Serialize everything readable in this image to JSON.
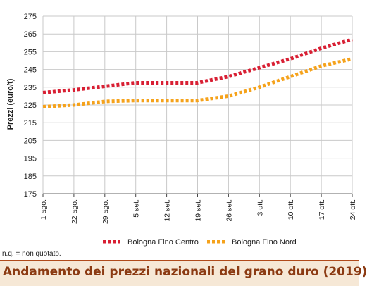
{
  "chart_data": {
    "type": "line",
    "ylabel": "Prezzi (euro/t)",
    "ylim": [
      175,
      275
    ],
    "yticks": [
      175,
      185,
      195,
      205,
      215,
      225,
      235,
      245,
      255,
      265,
      275
    ],
    "categories": [
      "1 ago.",
      "22 ago.",
      "29 ago.",
      "5 set.",
      "12 set.",
      "19 set.",
      "26 set.",
      "3 ott.",
      "10 ott.",
      "17 ott.",
      "24 ott."
    ],
    "series": [
      {
        "name": "Bologna Fino Centro",
        "color": "#d81f33",
        "values": [
          232,
          233.5,
          235.5,
          237.5,
          237.5,
          237.5,
          241,
          246,
          251,
          257,
          262
        ]
      },
      {
        "name": "Bologna Fino Nord",
        "color": "#f5a21b",
        "values": [
          224,
          225,
          227,
          227.5,
          227.5,
          227.5,
          230,
          235,
          241,
          247,
          251
        ]
      }
    ],
    "grid": true,
    "legend_position": "bottom"
  },
  "footnote": "n.q. = non quotato.",
  "footer_title": "Andamento dei prezzi nazionali del grano duro (2019)",
  "colors": {
    "grid": "#c9c9c9",
    "footer_bg": "#f6e8d6",
    "footer_text": "#8b3a12"
  }
}
